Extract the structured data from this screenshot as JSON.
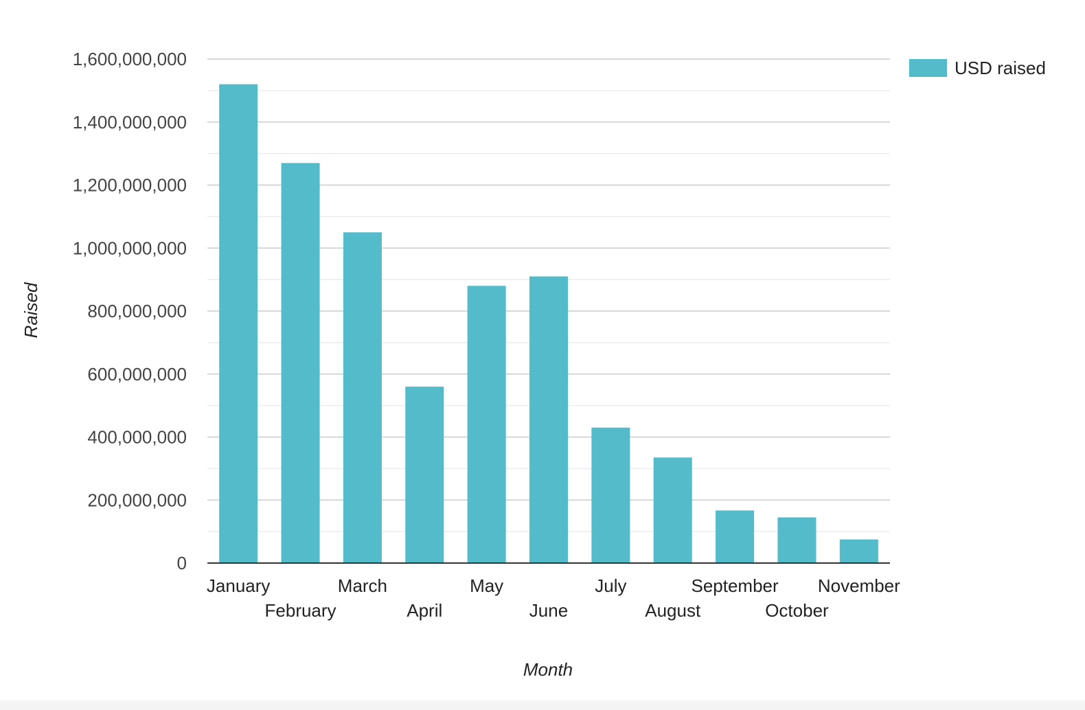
{
  "chart_data": {
    "type": "bar",
    "title": "",
    "xlabel": "Month",
    "ylabel": "Raised",
    "ylim": [
      0,
      1600000000
    ],
    "yticks": [
      0,
      200000000,
      400000000,
      600000000,
      800000000,
      1000000000,
      1200000000,
      1400000000,
      1600000000
    ],
    "ytick_labels": [
      "0",
      "200,000,000",
      "400,000,000",
      "600,000,000",
      "800,000,000",
      "1,000,000,000",
      "1,200,000,000",
      "1,400,000,000",
      "1,600,000,000"
    ],
    "grid": true,
    "legend_position": "top-right",
    "categories": [
      "January",
      "February",
      "March",
      "April",
      "May",
      "June",
      "July",
      "August",
      "September",
      "October",
      "November"
    ],
    "series": [
      {
        "name": "USD raised",
        "color": "#54bbca",
        "values": [
          1520000000,
          1270000000,
          1050000000,
          560000000,
          880000000,
          910000000,
          430000000,
          335000000,
          167000000,
          145000000,
          75000000
        ]
      }
    ]
  }
}
